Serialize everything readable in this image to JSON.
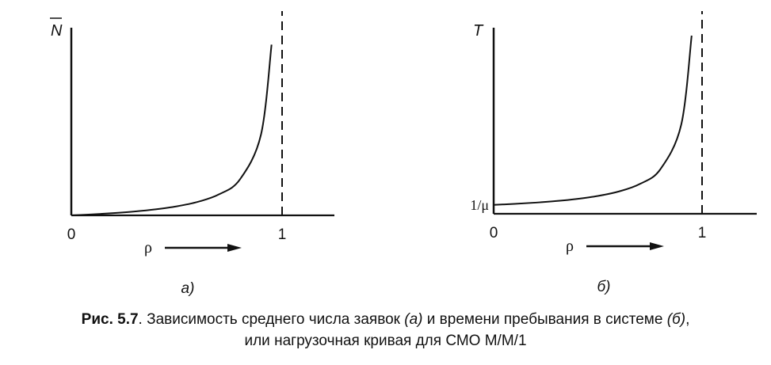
{
  "chart_data": [
    {
      "type": "line",
      "title": "",
      "xlabel": "ρ",
      "ylabel": "N",
      "ylabel_overline": true,
      "x_ticks": [
        "0",
        "1"
      ],
      "y_ticks": [],
      "panel_label": "а)",
      "asymptote": {
        "x": 1,
        "style": "dashed"
      },
      "xlim": [
        0,
        1.25
      ],
      "ylim": [
        0,
        20
      ],
      "series": [
        {
          "x": [
            0,
            0.1,
            0.2,
            0.3,
            0.4,
            0.5,
            0.6,
            0.7,
            0.8,
            0.9,
            0.95
          ],
          "y": [
            0,
            0.11,
            0.25,
            0.43,
            0.67,
            1.0,
            1.5,
            2.33,
            4.0,
            9.0,
            19.0
          ]
        }
      ]
    },
    {
      "type": "line",
      "title": "",
      "xlabel": "ρ",
      "ylabel": "T",
      "x_ticks": [
        "0",
        "1"
      ],
      "y_tick_label": "1/μ",
      "panel_label": "б)",
      "asymptote": {
        "x": 1,
        "style": "dashed"
      },
      "xlim": [
        0,
        1.25
      ],
      "ylim": [
        0,
        20
      ],
      "series": [
        {
          "x": [
            0,
            0.1,
            0.2,
            0.3,
            0.4,
            0.5,
            0.6,
            0.7,
            0.8,
            0.9,
            0.95
          ],
          "y": [
            1.0,
            1.11,
            1.25,
            1.43,
            1.67,
            2.0,
            2.5,
            3.33,
            5.0,
            10.0,
            20.0
          ]
        }
      ]
    }
  ],
  "caption": {
    "fig_label": "Рис. 5.7",
    "line1_a": ". Зависимость среднего числа заявок ",
    "line1_b": "(а)",
    "line1_c": " и времени пребывания в системе ",
    "line1_d": "(б)",
    "line1_e": ",",
    "line2": "или нагрузочная кривая для СМО М/М/1"
  }
}
